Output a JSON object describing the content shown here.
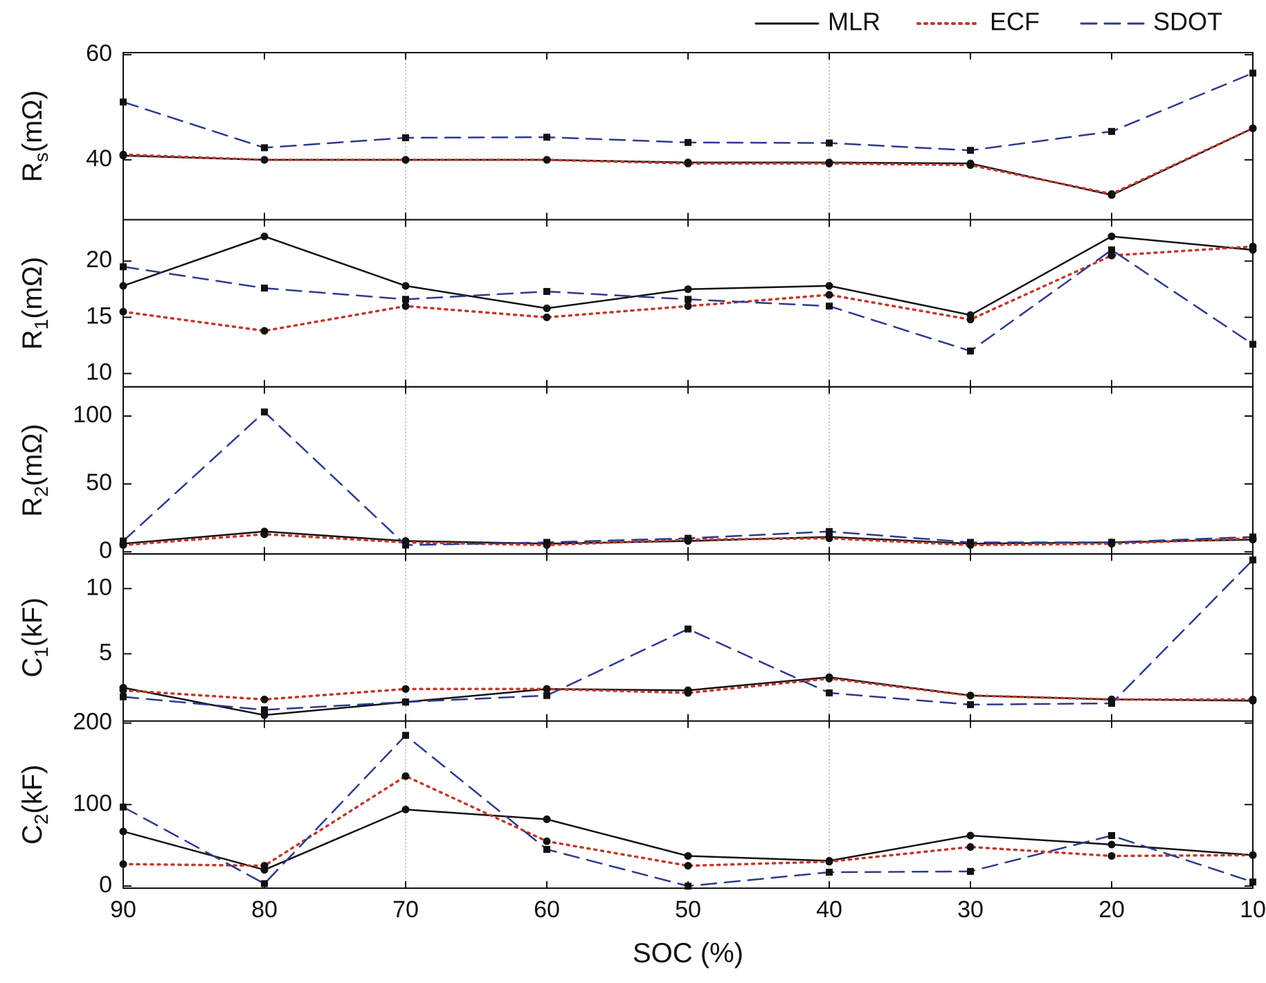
{
  "chart_data": {
    "type": "line",
    "xlabel": "SOC (%)",
    "x": [
      90,
      80,
      70,
      60,
      50,
      40,
      30,
      20,
      10
    ],
    "x_ticks": [
      "90",
      "80",
      "70",
      "60",
      "50",
      "40",
      "30",
      "20",
      "10"
    ],
    "x_reversed": true,
    "xlim": [
      90,
      10
    ],
    "vertical_gridlines_at": [
      70,
      40
    ],
    "legend": {
      "placement": "top-right",
      "entries": [
        {
          "label": "MLR",
          "color": "#111111",
          "style": "solid"
        },
        {
          "label": "ECF",
          "color": "#c0392b",
          "style": "dotted"
        },
        {
          "label": "SDOT",
          "color": "#2c3a8c",
          "style": "dashed"
        }
      ]
    },
    "panels": [
      {
        "ylabel": "R",
        "ylabel_sub": "s",
        "ylabel_unit": "(mΩ)",
        "ylim": [
          29,
          60
        ],
        "yticks": [
          "40",
          "60"
        ],
        "ytick_values": [
          40,
          60
        ],
        "series": [
          {
            "name": "MLR",
            "values": [
              40.8,
              40.0,
              40.0,
              40.0,
              39.5,
              39.5,
              39.3,
              33.3,
              46.0
            ]
          },
          {
            "name": "ECF",
            "values": [
              41.0,
              40.0,
              40.0,
              40.0,
              39.3,
              39.3,
              39.0,
              33.5,
              46.0
            ]
          },
          {
            "name": "SDOT",
            "values": [
              51.0,
              42.3,
              44.2,
              44.3,
              43.3,
              43.2,
              41.8,
              45.4,
              56.5
            ]
          }
        ]
      },
      {
        "ylabel": "R",
        "ylabel_sub": "1",
        "ylabel_unit": "(mΩ)",
        "ylim": [
          9,
          23.5
        ],
        "yticks": [
          "10",
          "15",
          "20"
        ],
        "ytick_values": [
          10,
          15,
          20
        ],
        "series": [
          {
            "name": "MLR",
            "values": [
              17.8,
              22.2,
              17.8,
              15.8,
              17.5,
              17.8,
              15.2,
              22.2,
              21.0
            ]
          },
          {
            "name": "ECF",
            "values": [
              15.5,
              13.8,
              16.0,
              15.0,
              16.0,
              17.0,
              14.8,
              20.5,
              21.3
            ]
          },
          {
            "name": "SDOT",
            "values": [
              19.5,
              17.6,
              16.6,
              17.3,
              16.6,
              16.0,
              12.0,
              21.0,
              12.6
            ]
          }
        ]
      },
      {
        "ylabel": "R",
        "ylabel_sub": "2",
        "ylabel_unit": "(mΩ)",
        "ylim": [
          0,
          120
        ],
        "yticks": [
          "0",
          "50",
          "100"
        ],
        "ytick_values": [
          0,
          50,
          100
        ],
        "series": [
          {
            "name": "MLR",
            "values": [
              6,
              15,
              8,
              6,
              8,
              11,
              6,
              7,
              9
            ]
          },
          {
            "name": "ECF",
            "values": [
              5,
              13,
              7,
              5,
              9,
              10,
              5,
              6,
              10
            ]
          },
          {
            "name": "SDOT",
            "values": [
              8,
              103,
              5,
              7,
              10,
              15,
              7,
              7,
              11
            ]
          }
        ]
      },
      {
        "ylabel": "C",
        "ylabel_sub": "1",
        "ylabel_unit": "(kF)",
        "ylim": [
          0,
          12.5
        ],
        "yticks": [
          "5",
          "10"
        ],
        "ytick_values": [
          5,
          10
        ],
        "series": [
          {
            "name": "MLR",
            "values": [
              2.4,
              0.3,
              1.3,
              2.3,
              2.2,
              3.2,
              1.8,
              1.5,
              1.4
            ]
          },
          {
            "name": "ECF",
            "values": [
              2.2,
              1.5,
              2.3,
              2.3,
              2.0,
              3.1,
              1.8,
              1.5,
              1.5
            ]
          },
          {
            "name": "SDOT",
            "values": [
              1.7,
              0.7,
              1.3,
              1.8,
              6.9,
              2.0,
              1.1,
              1.2,
              12.2
            ]
          }
        ]
      },
      {
        "ylabel": "C",
        "ylabel_sub": "2",
        "ylabel_unit": "(kF)",
        "ylim": [
          0,
          200
        ],
        "yticks": [
          "0",
          "100",
          "200"
        ],
        "ytick_values": [
          0,
          100,
          200
        ],
        "series": [
          {
            "name": "MLR",
            "values": [
              67,
              20,
              94,
              82,
              37,
              31,
              62,
              51,
              38
            ]
          },
          {
            "name": "ECF",
            "values": [
              27,
              25,
              135,
              55,
              25,
              30,
              48,
              37,
              38
            ]
          },
          {
            "name": "SDOT",
            "values": [
              97,
              3,
              185,
              45,
              0,
              17,
              18,
              62,
              5
            ]
          }
        ]
      }
    ]
  }
}
